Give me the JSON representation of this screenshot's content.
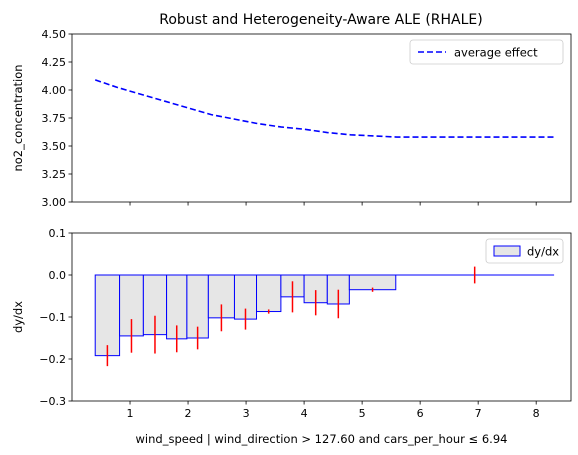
{
  "chart_data": [
    {
      "type": "line",
      "title": "Robust and Heterogeneity-Aware ALE (RHALE)",
      "xlabel": "",
      "ylabel": "no2_concentration",
      "xlim": [
        0.0,
        8.6
      ],
      "ylim": [
        3.0,
        4.5
      ],
      "xticks": [
        1,
        2,
        3,
        4,
        5,
        6,
        7,
        8
      ],
      "show_xtick_labels": false,
      "yticks": [
        3.0,
        3.25,
        3.5,
        3.75,
        4.0,
        4.25,
        4.5
      ],
      "ytick_labels": [
        "3.00",
        "3.25",
        "3.50",
        "3.75",
        "4.00",
        "4.25",
        "4.50"
      ],
      "grid": false,
      "legend": "top-right",
      "series": [
        {
          "name": "average effect",
          "color": "#0000ff",
          "line_style": "dashed",
          "x": [
            0.4,
            0.8,
            1.2,
            1.6,
            2.0,
            2.4,
            2.8,
            3.2,
            3.6,
            4.0,
            4.4,
            4.8,
            5.2,
            5.6,
            6.4,
            7.2,
            8.3
          ],
          "y": [
            4.09,
            4.02,
            3.96,
            3.9,
            3.84,
            3.78,
            3.74,
            3.7,
            3.67,
            3.65,
            3.62,
            3.6,
            3.59,
            3.58,
            3.58,
            3.58,
            3.58
          ]
        }
      ]
    },
    {
      "type": "bar",
      "title": "",
      "xlabel": "wind_speed | wind_direction > 127.60 and cars_per_hour ≤ 6.94",
      "ylabel": "dy/dx",
      "xlim": [
        0.0,
        8.6
      ],
      "ylim": [
        -0.3,
        0.1
      ],
      "xticks": [
        1,
        2,
        3,
        4,
        5,
        6,
        7,
        8
      ],
      "xtick_labels": [
        "1",
        "2",
        "3",
        "4",
        "5",
        "6",
        "7",
        "8"
      ],
      "yticks": [
        -0.3,
        -0.2,
        -0.1,
        0.0,
        0.1
      ],
      "ytick_labels": [
        "−0.3",
        "−0.2",
        "−0.1",
        "0.0",
        "0.1"
      ],
      "grid": false,
      "legend": "top-right",
      "bar_face_color": "#e6e6e6",
      "bar_edge_color": "#0000ff",
      "error_color": "#ff0000",
      "series": [
        {
          "name": "dy/dx",
          "bins": [
            {
              "x0": 0.4,
              "x1": 0.82,
              "value": -0.192,
              "std": 0.025
            },
            {
              "x0": 0.82,
              "x1": 1.23,
              "value": -0.145,
              "std": 0.04
            },
            {
              "x0": 1.23,
              "x1": 1.63,
              "value": -0.142,
              "std": 0.045
            },
            {
              "x0": 1.63,
              "x1": 1.98,
              "value": -0.152,
              "std": 0.032
            },
            {
              "x0": 1.98,
              "x1": 2.35,
              "value": -0.15,
              "std": 0.027
            },
            {
              "x0": 2.35,
              "x1": 2.8,
              "value": -0.102,
              "std": 0.032
            },
            {
              "x0": 2.8,
              "x1": 3.18,
              "value": -0.105,
              "std": 0.025
            },
            {
              "x0": 3.18,
              "x1": 3.6,
              "value": -0.087,
              "std": 0.005
            },
            {
              "x0": 3.6,
              "x1": 4.0,
              "value": -0.052,
              "std": 0.037
            },
            {
              "x0": 4.0,
              "x1": 4.4,
              "value": -0.066,
              "std": 0.03
            },
            {
              "x0": 4.4,
              "x1": 4.78,
              "value": -0.069,
              "std": 0.034
            },
            {
              "x0": 4.78,
              "x1": 5.58,
              "value": -0.035,
              "std": 0.005
            },
            {
              "x0": 5.58,
              "x1": 8.3,
              "value": 0.0,
              "std": 0.02
            }
          ]
        }
      ]
    }
  ]
}
